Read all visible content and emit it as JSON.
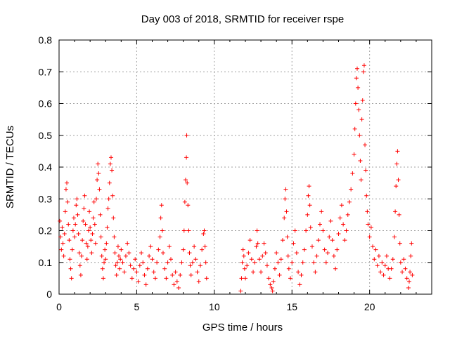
{
  "chart_data": {
    "type": "scatter",
    "title": "Day 003 of 2018, SRMTID for receiver rspe",
    "xlabel": "GPS time / hours",
    "ylabel": "SRMTID / TECUs",
    "xlim": [
      0,
      24
    ],
    "ylim": [
      0,
      0.8
    ],
    "xticks": [
      0,
      5,
      10,
      15,
      20
    ],
    "yticks": [
      0,
      0.1,
      0.2,
      0.3,
      0.4,
      0.5,
      0.6,
      0.7,
      0.8
    ],
    "xtick_labels": [
      "0",
      "5",
      "10",
      "15",
      "20"
    ],
    "ytick_labels": [
      "0",
      "0.1",
      "0.2",
      "0.3",
      "0.4",
      "0.5",
      "0.6",
      "0.7",
      "0.8"
    ],
    "grid": true,
    "marker": "+",
    "color": "#ff0000",
    "series": [
      {
        "name": "SRMTID",
        "points": [
          [
            0.05,
            0.23
          ],
          [
            0.1,
            0.18
          ],
          [
            0.15,
            0.14
          ],
          [
            0.2,
            0.21
          ],
          [
            0.25,
            0.16
          ],
          [
            0.3,
            0.12
          ],
          [
            0.35,
            0.19
          ],
          [
            0.4,
            0.26
          ],
          [
            0.45,
            0.33
          ],
          [
            0.5,
            0.35
          ],
          [
            0.55,
            0.29
          ],
          [
            0.6,
            0.22
          ],
          [
            0.65,
            0.17
          ],
          [
            0.7,
            0.11
          ],
          [
            0.75,
            0.08
          ],
          [
            0.8,
            0.05
          ],
          [
            0.85,
            0.14
          ],
          [
            0.9,
            0.2
          ],
          [
            0.95,
            0.24
          ],
          [
            1.0,
            0.18
          ],
          [
            1.05,
            0.22
          ],
          [
            1.1,
            0.28
          ],
          [
            1.15,
            0.3
          ],
          [
            1.2,
            0.25
          ],
          [
            1.25,
            0.19
          ],
          [
            1.3,
            0.13
          ],
          [
            1.35,
            0.09
          ],
          [
            1.4,
            0.06
          ],
          [
            1.45,
            0.12
          ],
          [
            1.5,
            0.17
          ],
          [
            1.55,
            0.23
          ],
          [
            1.6,
            0.27
          ],
          [
            1.65,
            0.31
          ],
          [
            1.7,
            0.22
          ],
          [
            1.75,
            0.16
          ],
          [
            1.8,
            0.11
          ],
          [
            1.85,
            0.15
          ],
          [
            1.9,
            0.2
          ],
          [
            1.95,
            0.26
          ],
          [
            2.0,
            0.21
          ],
          [
            2.05,
            0.17
          ],
          [
            2.1,
            0.13
          ],
          [
            2.15,
            0.19
          ],
          [
            2.2,
            0.24
          ],
          [
            2.25,
            0.29
          ],
          [
            2.3,
            0.22
          ],
          [
            2.35,
            0.16
          ],
          [
            2.4,
            0.3
          ],
          [
            2.45,
            0.36
          ],
          [
            2.5,
            0.41
          ],
          [
            2.55,
            0.38
          ],
          [
            2.6,
            0.33
          ],
          [
            2.65,
            0.25
          ],
          [
            2.7,
            0.18
          ],
          [
            2.75,
            0.12
          ],
          [
            2.8,
            0.08
          ],
          [
            2.85,
            0.05
          ],
          [
            2.9,
            0.1
          ],
          [
            2.95,
            0.14
          ],
          [
            3.0,
            0.11
          ],
          [
            3.05,
            0.16
          ],
          [
            3.1,
            0.21
          ],
          [
            3.15,
            0.27
          ],
          [
            3.2,
            0.3
          ],
          [
            3.25,
            0.35
          ],
          [
            3.3,
            0.41
          ],
          [
            3.35,
            0.43
          ],
          [
            3.4,
            0.39
          ],
          [
            3.45,
            0.31
          ],
          [
            3.5,
            0.24
          ],
          [
            3.55,
            0.18
          ],
          [
            3.6,
            0.13
          ],
          [
            3.65,
            0.09
          ],
          [
            3.7,
            0.06
          ],
          [
            3.75,
            0.1
          ],
          [
            3.8,
            0.15
          ],
          [
            3.85,
            0.12
          ],
          [
            3.9,
            0.08
          ],
          [
            3.95,
            0.11
          ],
          [
            4.0,
            0.14
          ],
          [
            4.1,
            0.1
          ],
          [
            4.2,
            0.07
          ],
          [
            4.3,
            0.12
          ],
          [
            4.4,
            0.16
          ],
          [
            4.5,
            0.13
          ],
          [
            4.6,
            0.09
          ],
          [
            4.7,
            0.05
          ],
          [
            4.8,
            0.08
          ],
          [
            4.9,
            0.11
          ],
          [
            5.0,
            0.07
          ],
          [
            5.1,
            0.04
          ],
          [
            5.2,
            0.09
          ],
          [
            5.3,
            0.13
          ],
          [
            5.4,
            0.1
          ],
          [
            5.5,
            0.06
          ],
          [
            5.6,
            0.03
          ],
          [
            5.7,
            0.08
          ],
          [
            5.8,
            0.12
          ],
          [
            5.9,
            0.15
          ],
          [
            6.0,
            0.11
          ],
          [
            6.1,
            0.07
          ],
          [
            6.2,
            0.05
          ],
          [
            6.3,
            0.1
          ],
          [
            6.4,
            0.14
          ],
          [
            6.5,
            0.18
          ],
          [
            6.55,
            0.24
          ],
          [
            6.6,
            0.28
          ],
          [
            6.65,
            0.2
          ],
          [
            6.7,
            0.13
          ],
          [
            6.8,
            0.08
          ],
          [
            6.9,
            0.05
          ],
          [
            7.0,
            0.1
          ],
          [
            7.1,
            0.15
          ],
          [
            7.2,
            0.11
          ],
          [
            7.3,
            0.06
          ],
          [
            7.4,
            0.03
          ],
          [
            7.5,
            0.07
          ],
          [
            7.6,
            0.04
          ],
          [
            7.7,
            0.02
          ],
          [
            7.8,
            0.06
          ],
          [
            7.9,
            0.1
          ],
          [
            8.0,
            0.14
          ],
          [
            8.05,
            0.2
          ],
          [
            8.1,
            0.29
          ],
          [
            8.15,
            0.36
          ],
          [
            8.2,
            0.43
          ],
          [
            8.22,
            0.5
          ],
          [
            8.25,
            0.35
          ],
          [
            8.3,
            0.28
          ],
          [
            8.35,
            0.2
          ],
          [
            8.4,
            0.13
          ],
          [
            8.45,
            0.09
          ],
          [
            8.5,
            0.06
          ],
          [
            8.6,
            0.1
          ],
          [
            8.7,
            0.15
          ],
          [
            8.8,
            0.11
          ],
          [
            8.9,
            0.07
          ],
          [
            9.0,
            0.04
          ],
          [
            9.1,
            0.09
          ],
          [
            9.2,
            0.14
          ],
          [
            9.3,
            0.19
          ],
          [
            9.35,
            0.2
          ],
          [
            9.4,
            0.15
          ],
          [
            9.45,
            0.1
          ],
          [
            9.5,
            0.05
          ],
          [
            11.7,
            0.01
          ],
          [
            11.75,
            0.05
          ],
          [
            11.8,
            0.1
          ],
          [
            11.85,
            0.14
          ],
          [
            11.9,
            0.12
          ],
          [
            11.95,
            0.08
          ],
          [
            12.0,
            0.05
          ],
          [
            12.1,
            0.09
          ],
          [
            12.2,
            0.13
          ],
          [
            12.3,
            0.17
          ],
          [
            12.4,
            0.11
          ],
          [
            12.5,
            0.07
          ],
          [
            12.6,
            0.1
          ],
          [
            12.7,
            0.15
          ],
          [
            12.75,
            0.2
          ],
          [
            12.8,
            0.16
          ],
          [
            12.9,
            0.11
          ],
          [
            13.0,
            0.07
          ],
          [
            13.1,
            0.12
          ],
          [
            13.2,
            0.16
          ],
          [
            13.3,
            0.13
          ],
          [
            13.4,
            0.09
          ],
          [
            13.5,
            0.05
          ],
          [
            13.6,
            0.03
          ],
          [
            13.7,
            0.02
          ],
          [
            13.75,
            0.01
          ],
          [
            13.8,
            0.04
          ],
          [
            13.9,
            0.08
          ],
          [
            14.0,
            0.13
          ],
          [
            14.1,
            0.1
          ],
          [
            14.2,
            0.06
          ],
          [
            14.3,
            0.11
          ],
          [
            14.4,
            0.17
          ],
          [
            14.5,
            0.24
          ],
          [
            14.55,
            0.3
          ],
          [
            14.6,
            0.33
          ],
          [
            14.65,
            0.26
          ],
          [
            14.7,
            0.18
          ],
          [
            14.75,
            0.12
          ],
          [
            14.8,
            0.08
          ],
          [
            14.9,
            0.05
          ],
          [
            15.0,
            0.1
          ],
          [
            15.1,
            0.16
          ],
          [
            15.2,
            0.2
          ],
          [
            15.3,
            0.13
          ],
          [
            15.4,
            0.07
          ],
          [
            15.5,
            0.03
          ],
          [
            15.6,
            0.06
          ],
          [
            15.7,
            0.1
          ],
          [
            15.8,
            0.14
          ],
          [
            15.9,
            0.2
          ],
          [
            16.0,
            0.25
          ],
          [
            16.05,
            0.31
          ],
          [
            16.1,
            0.34
          ],
          [
            16.15,
            0.28
          ],
          [
            16.2,
            0.21
          ],
          [
            16.3,
            0.15
          ],
          [
            16.4,
            0.1
          ],
          [
            16.5,
            0.07
          ],
          [
            16.6,
            0.12
          ],
          [
            16.7,
            0.17
          ],
          [
            16.8,
            0.22
          ],
          [
            16.9,
            0.26
          ],
          [
            17.0,
            0.2
          ],
          [
            17.1,
            0.14
          ],
          [
            17.2,
            0.1
          ],
          [
            17.3,
            0.13
          ],
          [
            17.4,
            0.18
          ],
          [
            17.5,
            0.23
          ],
          [
            17.6,
            0.17
          ],
          [
            17.7,
            0.12
          ],
          [
            17.8,
            0.08
          ],
          [
            17.9,
            0.14
          ],
          [
            18.0,
            0.19
          ],
          [
            18.1,
            0.24
          ],
          [
            18.2,
            0.28
          ],
          [
            18.3,
            0.22
          ],
          [
            18.4,
            0.17
          ],
          [
            18.5,
            0.2
          ],
          [
            18.6,
            0.25
          ],
          [
            18.7,
            0.29
          ],
          [
            18.8,
            0.33
          ],
          [
            18.9,
            0.38
          ],
          [
            19.0,
            0.44
          ],
          [
            19.05,
            0.52
          ],
          [
            19.1,
            0.6
          ],
          [
            19.15,
            0.68
          ],
          [
            19.2,
            0.71
          ],
          [
            19.25,
            0.65
          ],
          [
            19.3,
            0.58
          ],
          [
            19.35,
            0.5
          ],
          [
            19.4,
            0.42
          ],
          [
            19.45,
            0.36
          ],
          [
            19.5,
            0.55
          ],
          [
            19.55,
            0.61
          ],
          [
            19.6,
            0.7
          ],
          [
            19.65,
            0.72
          ],
          [
            19.7,
            0.47
          ],
          [
            19.75,
            0.39
          ],
          [
            19.8,
            0.31
          ],
          [
            19.85,
            0.26
          ],
          [
            19.9,
            0.22
          ],
          [
            20.0,
            0.18
          ],
          [
            20.1,
            0.21
          ],
          [
            20.2,
            0.15
          ],
          [
            20.3,
            0.11
          ],
          [
            20.4,
            0.14
          ],
          [
            20.5,
            0.09
          ],
          [
            20.6,
            0.12
          ],
          [
            20.7,
            0.07
          ],
          [
            20.8,
            0.1
          ],
          [
            20.9,
            0.06
          ],
          [
            21.0,
            0.09
          ],
          [
            21.1,
            0.12
          ],
          [
            21.2,
            0.08
          ],
          [
            21.3,
            0.05
          ],
          [
            21.4,
            0.08
          ],
          [
            21.5,
            0.11
          ],
          [
            21.6,
            0.18
          ],
          [
            21.65,
            0.26
          ],
          [
            21.7,
            0.34
          ],
          [
            21.75,
            0.41
          ],
          [
            21.8,
            0.45
          ],
          [
            21.85,
            0.36
          ],
          [
            21.9,
            0.25
          ],
          [
            21.95,
            0.16
          ],
          [
            22.0,
            0.1
          ],
          [
            22.1,
            0.07
          ],
          [
            22.2,
            0.11
          ],
          [
            22.3,
            0.08
          ],
          [
            22.4,
            0.05
          ],
          [
            22.5,
            0.02
          ],
          [
            22.55,
            0.04
          ],
          [
            22.6,
            0.07
          ],
          [
            22.65,
            0.12
          ],
          [
            22.7,
            0.16
          ],
          [
            22.75,
            0.06
          ]
        ]
      }
    ]
  }
}
